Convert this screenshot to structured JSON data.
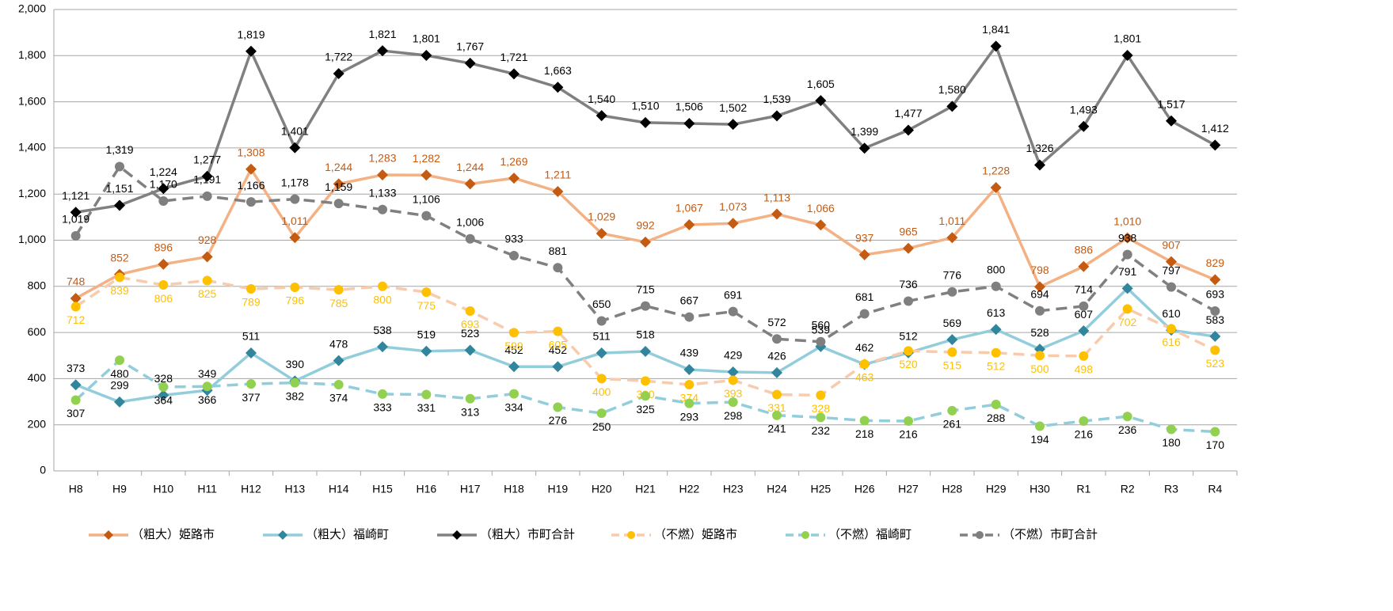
{
  "chart_data": {
    "type": "line",
    "categories": [
      "H8",
      "H9",
      "H10",
      "H11",
      "H12",
      "H13",
      "H14",
      "H15",
      "H16",
      "H17",
      "H18",
      "H19",
      "H20",
      "H21",
      "H22",
      "H23",
      "H24",
      "H25",
      "H26",
      "H27",
      "H28",
      "H29",
      "H30",
      "R1",
      "R2",
      "R3",
      "R4"
    ],
    "ylim": [
      0,
      2000
    ],
    "yticks": [
      0,
      200,
      400,
      600,
      800,
      {
        "value": 1000,
        "label": "1,000"
      },
      {
        "value": 1200,
        "label": "1,200"
      },
      {
        "value": 1400,
        "label": "1,400"
      },
      {
        "value": 1600,
        "label": "1,600"
      },
      {
        "value": 1800,
        "label": "1,800"
      },
      {
        "value": 2000,
        "label": "2,000"
      }
    ],
    "grid": true,
    "legend": "bottom",
    "series": [
      {
        "name": "（粗大）姫路市",
        "color": "#f4b183",
        "marker_color": "#c55a11",
        "marker": "diamond",
        "dashed": false,
        "label_color": "#c55a11",
        "values": [
          748,
          852,
          896,
          928,
          1308,
          1011,
          1244,
          1283,
          1282,
          1244,
          1269,
          1211,
          1029,
          992,
          1067,
          1073,
          1113,
          1066,
          937,
          965,
          1011,
          1228,
          798,
          886,
          1010,
          907,
          829
        ],
        "value_labels": [
          "748",
          "852",
          "896",
          "928",
          "1,308",
          "1,011",
          "1,244",
          "1,283",
          "1,282",
          "1,244",
          "1,269",
          "1,211",
          "1,029",
          "992",
          "1,067",
          "1,073",
          "1,113",
          "1,066",
          "937",
          "965",
          "1,011",
          "1,228",
          "798",
          "886",
          "1,010",
          "907",
          "829"
        ]
      },
      {
        "name": "（粗大）福崎町",
        "color": "#92cddc",
        "marker_color": "#31859c",
        "marker": "diamond",
        "dashed": false,
        "label_color": "#000000",
        "values": [
          373,
          299,
          328,
          349,
          511,
          390,
          478,
          538,
          519,
          523,
          452,
          452,
          511,
          518,
          439,
          429,
          426,
          539,
          462,
          512,
          569,
          613,
          528,
          607,
          791,
          610,
          583
        ]
      },
      {
        "name": "（粗大）市町合計",
        "color": "#808080",
        "marker_color": "#000000",
        "marker": "diamond",
        "dashed": false,
        "label_color": "#000000",
        "values": [
          1121,
          1151,
          1224,
          1277,
          1819,
          1401,
          1722,
          1821,
          1801,
          1767,
          1721,
          1663,
          1540,
          1510,
          1506,
          1502,
          1539,
          1605,
          1399,
          1477,
          1580,
          1841,
          1326,
          1493,
          1801,
          1517,
          1412
        ],
        "value_labels": [
          "1,121",
          "1,151",
          "1,224",
          "1,277",
          "1,819",
          "1,401",
          "1,722",
          "1,821",
          "1,801",
          "1,767",
          "1,721",
          "1,663",
          "1,540",
          "1,510",
          "1,506",
          "1,502",
          "1,539",
          "1,605",
          "1,399",
          "1,477",
          "1,580",
          "1,841",
          "1,326",
          "1,493",
          "1,801",
          "1,517",
          "1,412"
        ]
      },
      {
        "name": "（不燃）姫路市",
        "color": "#f8cbad",
        "marker_color": "#ffc000",
        "marker": "circle",
        "dashed": true,
        "label_color": "#ffc000",
        "values": [
          712,
          839,
          806,
          825,
          789,
          796,
          785,
          800,
          775,
          693,
          599,
          605,
          400,
          390,
          374,
          393,
          331,
          328,
          463,
          520,
          515,
          512,
          500,
          498,
          702,
          616,
          523
        ]
      },
      {
        "name": "（不燃）福崎町",
        "color": "#92cddc",
        "marker_color": "#92d050",
        "marker": "circle",
        "dashed": true,
        "label_color": "#000000",
        "values": [
          307,
          480,
          364,
          366,
          377,
          382,
          374,
          333,
          331,
          313,
          334,
          276,
          250,
          325,
          293,
          298,
          241,
          232,
          218,
          216,
          261,
          288,
          194,
          216,
          236,
          180,
          170
        ]
      },
      {
        "name": "（不燃）市町合計",
        "color": "#808080",
        "marker_color": "#7f7f7f",
        "marker": "circle",
        "dashed": true,
        "label_color": "#000000",
        "values": [
          1019,
          1319,
          1170,
          1191,
          1166,
          1178,
          1159,
          1133,
          1106,
          1006,
          933,
          881,
          650,
          715,
          667,
          691,
          572,
          560,
          681,
          736,
          776,
          800,
          694,
          714,
          938,
          797,
          693
        ],
        "value_labels": [
          "1,019",
          "1,319",
          "1,170",
          "1,191",
          "1,166",
          "1,178",
          "1,159",
          "1,133",
          "1,106",
          "1,006",
          "933",
          "881",
          "650",
          "715",
          "667",
          "691",
          "572",
          "560",
          "681",
          "736",
          "776",
          "800",
          "694",
          "714",
          "938",
          "797",
          "693"
        ]
      }
    ]
  }
}
